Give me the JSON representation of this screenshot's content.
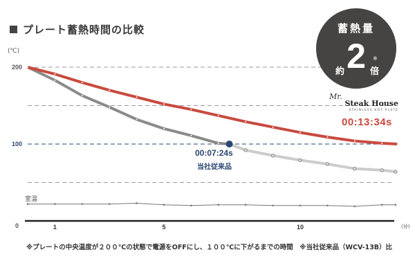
{
  "title": "プレート蓄熱時間の比較",
  "badge": {
    "top": "蓄熱量",
    "approx": "約",
    "number": "2",
    "note_mark": "※",
    "unit": "倍"
  },
  "brand": {
    "prefix": "Mr.",
    "name": "Steak House",
    "sub": "STAINLESS HOT PLATE"
  },
  "room_temp_label": "室温",
  "footnote": "※プレートの中央温度が２００℃の状態で電源をOFFにし、１００℃に下がるまでの時間　※当社従来品（WCV-13B）比",
  "chart_data": {
    "type": "line",
    "title": "プレート蓄熱時間の比較",
    "ylabel": "(℃)",
    "xlabel": "(分)",
    "ylim": [
      0,
      200
    ],
    "xlim": [
      0,
      13.6
    ],
    "y_ticks": [
      {
        "v": 200,
        "label": "200"
      },
      {
        "v": 100,
        "label": "100"
      },
      {
        "v": 0,
        "label": "0"
      }
    ],
    "y_gridlines": [
      200,
      150,
      100,
      50
    ],
    "x_ticks": [
      {
        "v": 1,
        "label": "1"
      },
      {
        "v": 5,
        "label": "5"
      },
      {
        "v": 10,
        "label": "10"
      }
    ],
    "colors": {
      "steak_house": "#c84a3f",
      "conventional_before": "#8a8a8a",
      "conventional_after": "#cccccc",
      "room": "#777777",
      "highlight": "#2c4670"
    },
    "series": [
      {
        "name": "Steak House",
        "x": [
          0,
          1,
          2,
          3,
          4,
          5,
          6,
          7,
          8,
          9,
          10,
          11,
          12,
          13,
          13.57
        ],
        "values": [
          200,
          191,
          180,
          170,
          161,
          152,
          145,
          137,
          129,
          122,
          115,
          109,
          104,
          101,
          100
        ],
        "annotation": "00:13:34s"
      },
      {
        "name": "当社従来品",
        "x": [
          0,
          1,
          2,
          3,
          4,
          5,
          6,
          7,
          7.4,
          8,
          9,
          10,
          11,
          12,
          13,
          13.5
        ],
        "values": [
          200,
          183,
          163,
          148,
          132,
          120,
          111,
          101,
          100,
          92,
          85,
          79,
          74,
          68,
          66,
          64
        ],
        "annotation": "00:07:24s",
        "highlight_x": 7.4
      },
      {
        "name": "室温",
        "x": [
          0,
          1,
          2,
          3,
          4,
          5,
          6,
          7,
          8,
          9,
          10,
          11,
          12,
          13,
          13.5
        ],
        "values": [
          22,
          22,
          22,
          22,
          23,
          21,
          20,
          21,
          21,
          20,
          20,
          20,
          19,
          21,
          21
        ]
      }
    ]
  }
}
